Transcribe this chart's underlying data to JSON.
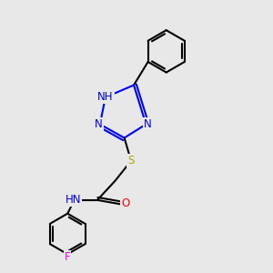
{
  "background_color": "#e8e8e8",
  "bond_color": "#000000",
  "atom_colors": {
    "N": "#0000ff",
    "S": "#aaaa00",
    "O": "#ff0000",
    "F": "#ff00ff",
    "C": "#000000"
  },
  "line_width": 1.5,
  "font_size": 8.5
}
